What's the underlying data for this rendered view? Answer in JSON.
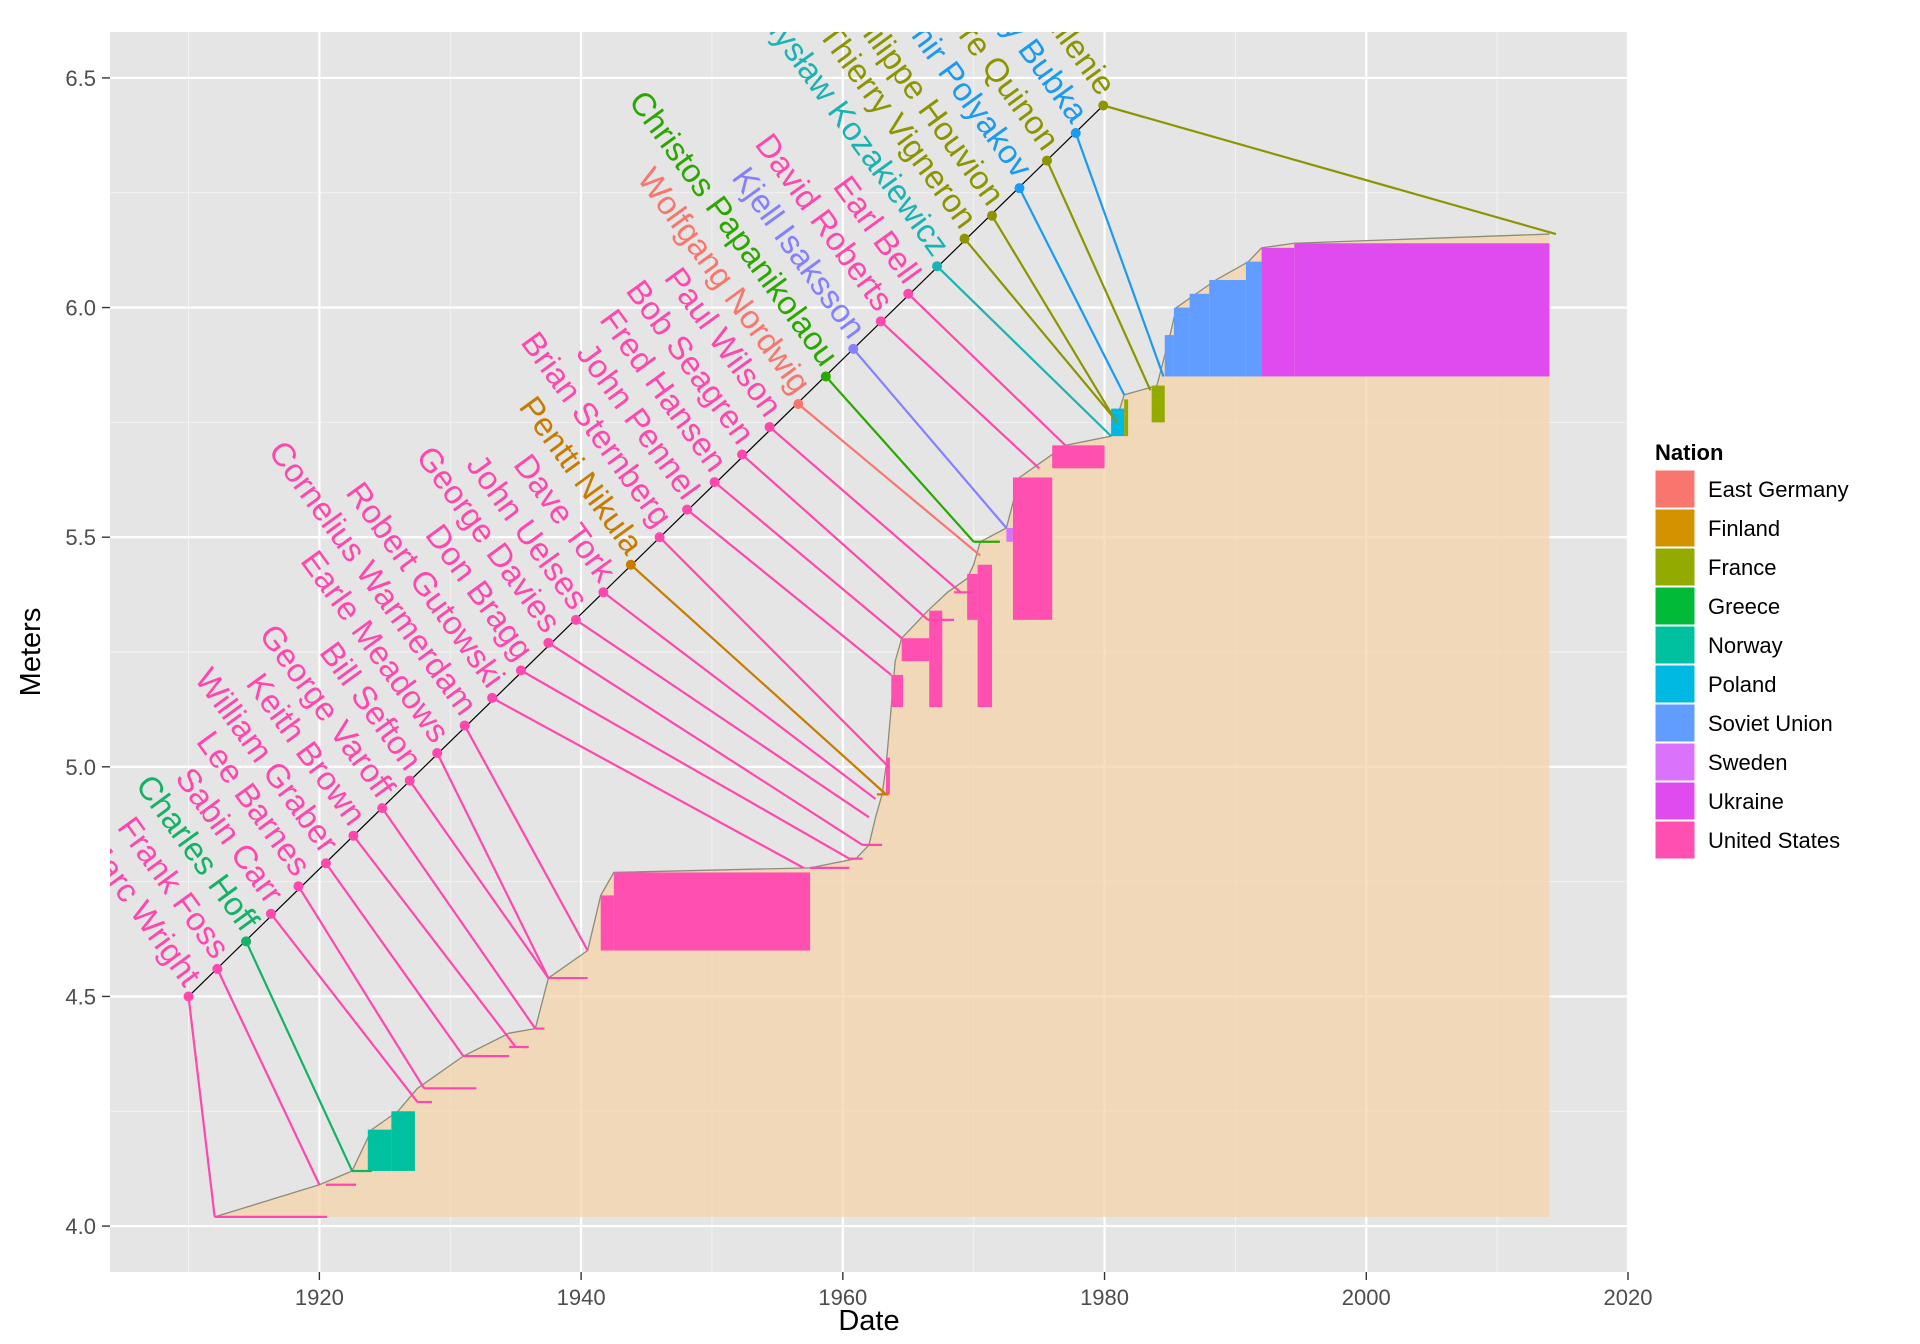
{
  "chart_data": {
    "type": "line",
    "xlabel": "Date",
    "ylabel": "Meters",
    "xlim": [
      1904,
      2020
    ],
    "ylim": [
      3.9,
      6.6
    ],
    "x_ticks": [
      1920,
      1940,
      1960,
      1980,
      2000,
      2020
    ],
    "y_ticks": [
      4.0,
      4.5,
      5.0,
      5.5,
      6.0,
      6.5
    ],
    "x_tick_labels": [
      "1920",
      "1940",
      "1960",
      "1980",
      "2000",
      "2020"
    ],
    "y_tick_labels": [
      "4.0",
      "4.5",
      "5.0",
      "5.5",
      "6.0",
      "6.5"
    ],
    "grid": true,
    "legend": {
      "title": "Nation",
      "position": "right",
      "entries": [
        {
          "name": "East Germany",
          "color": "#F8766D"
        },
        {
          "name": "Finland",
          "color": "#D39200"
        },
        {
          "name": "France",
          "color": "#93AA00"
        },
        {
          "name": "Greece",
          "color": "#00BA38"
        },
        {
          "name": "Norway",
          "color": "#00C19F"
        },
        {
          "name": "Poland",
          "color": "#00B9E3"
        },
        {
          "name": "Soviet Union",
          "color": "#619CFF"
        },
        {
          "name": "Sweden",
          "color": "#DB72FB"
        },
        {
          "name": "Ukraine",
          "color": "#E04BF0"
        },
        {
          "name": "United States",
          "color": "#FF4FB0"
        }
      ]
    },
    "label_colors": {
      "East Germany": "#F8766D",
      "Finland": "#C77C00",
      "France": "#8C9500",
      "Greece": "#2BA800",
      "Norway": "#13B265",
      "Poland": "#1AB3B3",
      "Soviet Union": "#1A9AF0",
      "Sweden": "#8480FF",
      "Ukraine": "#DA47EE",
      "United States": "#FF47AE"
    },
    "record_curve": [
      [
        1912.0,
        4.02
      ],
      [
        1920.0,
        4.09
      ],
      [
        1922.5,
        4.12
      ],
      [
        1924.0,
        4.21
      ],
      [
        1926.0,
        4.25
      ],
      [
        1927.5,
        4.3
      ],
      [
        1931.0,
        4.37
      ],
      [
        1934.5,
        4.42
      ],
      [
        1936.5,
        4.43
      ],
      [
        1937.5,
        4.54
      ],
      [
        1940.5,
        4.6
      ],
      [
        1941.5,
        4.72
      ],
      [
        1942.5,
        4.77
      ],
      [
        1957.5,
        4.78
      ],
      [
        1961.0,
        4.8
      ],
      [
        1962.0,
        4.83
      ],
      [
        1962.5,
        4.89
      ],
      [
        1963.0,
        4.94
      ],
      [
        1963.3,
        5.0
      ],
      [
        1963.7,
        5.13
      ],
      [
        1964.0,
        5.23
      ],
      [
        1964.5,
        5.28
      ],
      [
        1966.5,
        5.34
      ],
      [
        1968.0,
        5.38
      ],
      [
        1969.5,
        5.41
      ],
      [
        1970.0,
        5.44
      ],
      [
        1970.5,
        5.49
      ],
      [
        1972.5,
        5.52
      ],
      [
        1973.5,
        5.63
      ],
      [
        1975.0,
        5.66
      ],
      [
        1977.0,
        5.7
      ],
      [
        1980.5,
        5.72
      ],
      [
        1981.5,
        5.81
      ],
      [
        1984.0,
        5.83
      ],
      [
        1985.0,
        5.94
      ],
      [
        1985.5,
        6.0
      ],
      [
        1987.0,
        6.03
      ],
      [
        1988.5,
        6.06
      ],
      [
        1991.0,
        6.1
      ],
      [
        1992.0,
        6.13
      ],
      [
        1994.5,
        6.14
      ],
      [
        2014.0,
        6.16
      ]
    ],
    "record_fill_end": 2014.0,
    "records": [
      {
        "name": "Marc Wright",
        "nation": "United States",
        "year": 1912.0,
        "mark": 4.02,
        "label_year": 1910.0,
        "label_value": 4.5
      },
      {
        "name": "Frank Foss",
        "nation": "United States",
        "year": 1920.0,
        "mark": 4.09,
        "label_year": 1912.2,
        "label_value": 4.56
      },
      {
        "name": "Charles Hoff",
        "nation": "Norway",
        "year": 1922.5,
        "mark": 4.12,
        "label_year": 1914.4,
        "label_value": 4.62
      },
      {
        "name": "Sabin Carr",
        "nation": "United States",
        "year": 1927.5,
        "mark": 4.27,
        "label_year": 1916.3,
        "label_value": 4.68
      },
      {
        "name": "Lee Barnes",
        "nation": "United States",
        "year": 1928.0,
        "mark": 4.3,
        "label_year": 1918.4,
        "label_value": 4.74
      },
      {
        "name": "William Graber",
        "nation": "United States",
        "year": 1931.0,
        "mark": 4.37,
        "label_year": 1920.5,
        "label_value": 4.79
      },
      {
        "name": "Keith Brown",
        "nation": "United States",
        "year": 1935.0,
        "mark": 4.39,
        "label_year": 1922.6,
        "label_value": 4.85
      },
      {
        "name": "George Varoff",
        "nation": "United States",
        "year": 1936.5,
        "mark": 4.43,
        "label_year": 1924.8,
        "label_value": 4.91
      },
      {
        "name": "Bill Sefton",
        "nation": "United States",
        "year": 1937.5,
        "mark": 4.54,
        "label_year": 1926.9,
        "label_value": 4.97
      },
      {
        "name": "Earle Meadows",
        "nation": "United States",
        "year": 1937.5,
        "mark": 4.54,
        "label_year": 1929.0,
        "label_value": 5.03
      },
      {
        "name": "Cornelius Warmerdam",
        "nation": "United States",
        "year": 1940.5,
        "mark": 4.6,
        "label_year": 1931.1,
        "label_value": 5.09
      },
      {
        "name": "Robert Gutowski",
        "nation": "United States",
        "year": 1957.0,
        "mark": 4.78,
        "label_year": 1933.2,
        "label_value": 5.15
      },
      {
        "name": "Don Bragg",
        "nation": "United States",
        "year": 1960.5,
        "mark": 4.8,
        "label_year": 1935.4,
        "label_value": 5.21
      },
      {
        "name": "George Davies",
        "nation": "United States",
        "year": 1961.5,
        "mark": 4.83,
        "label_year": 1937.5,
        "label_value": 5.27
      },
      {
        "name": "John Uelses",
        "nation": "United States",
        "year": 1962.0,
        "mark": 4.89,
        "label_year": 1939.6,
        "label_value": 5.32
      },
      {
        "name": "Dave Tork",
        "nation": "United States",
        "year": 1962.5,
        "mark": 4.93,
        "label_year": 1941.7,
        "label_value": 5.38
      },
      {
        "name": "Pentti Nikula",
        "nation": "Finland",
        "year": 1963.3,
        "mark": 4.94,
        "label_year": 1943.8,
        "label_value": 5.44
      },
      {
        "name": "Brian Sternberg",
        "nation": "United States",
        "year": 1963.5,
        "mark": 5.0,
        "label_year": 1946.0,
        "label_value": 5.5
      },
      {
        "name": "John Pennel",
        "nation": "United States",
        "year": 1963.7,
        "mark": 5.2,
        "label_year": 1948.1,
        "label_value": 5.56
      },
      {
        "name": "Fred Hansen",
        "nation": "United States",
        "year": 1964.5,
        "mark": 5.28,
        "label_year": 1950.2,
        "label_value": 5.62
      },
      {
        "name": "Bob Seagren",
        "nation": "United States",
        "year": 1966.5,
        "mark": 5.32,
        "label_year": 1952.3,
        "label_value": 5.68
      },
      {
        "name": "Paul Wilson",
        "nation": "United States",
        "year": 1969.0,
        "mark": 5.38,
        "label_year": 1954.4,
        "label_value": 5.74
      },
      {
        "name": "Wolfgang Nordwig",
        "nation": "East Germany",
        "year": 1970.5,
        "mark": 5.46,
        "label_year": 1956.6,
        "label_value": 5.79
      },
      {
        "name": "Christos Papanikolaou",
        "nation": "Greece",
        "year": 1970.0,
        "mark": 5.49,
        "label_year": 1958.7,
        "label_value": 5.85
      },
      {
        "name": "Kjell Isaksson",
        "nation": "Sweden",
        "year": 1972.5,
        "mark": 5.52,
        "label_year": 1960.8,
        "label_value": 5.91
      },
      {
        "name": "David Roberts",
        "nation": "United States",
        "year": 1975.0,
        "mark": 5.65,
        "label_year": 1962.9,
        "label_value": 5.97
      },
      {
        "name": "Earl Bell",
        "nation": "United States",
        "year": 1977.0,
        "mark": 5.7,
        "label_year": 1965.0,
        "label_value": 6.03
      },
      {
        "name": "Władysław Kozakiewicz",
        "nation": "Poland",
        "year": 1980.5,
        "mark": 5.72,
        "label_year": 1967.2,
        "label_value": 6.09
      },
      {
        "name": "Thierry Vigneron",
        "nation": "France",
        "year": 1981.0,
        "mark": 5.75,
        "label_year": 1969.3,
        "label_value": 6.15
      },
      {
        "name": "Philippe Houvion",
        "nation": "France",
        "year": 1980.5,
        "mark": 5.77,
        "label_year": 1971.4,
        "label_value": 6.2
      },
      {
        "name": "Vladimir Polyakov",
        "nation": "Soviet Union",
        "year": 1981.5,
        "mark": 5.81,
        "label_year": 1973.5,
        "label_value": 6.26
      },
      {
        "name": "Pierre Quinon",
        "nation": "France",
        "year": 1983.5,
        "mark": 5.82,
        "label_year": 1975.6,
        "label_value": 6.32
      },
      {
        "name": "Sergey Bubka",
        "nation": "Soviet Union",
        "year": 1984.5,
        "mark": 5.85,
        "label_year": 1977.8,
        "label_value": 6.38
      },
      {
        "name": "Renaud Lavillenie",
        "nation": "France",
        "year": 2014.5,
        "mark": 6.16,
        "label_year": 1979.9,
        "label_value": 6.44
      }
    ],
    "record_bars": [
      {
        "nation": "Norway",
        "x0": 1923.7,
        "x1": 1925.5,
        "y0": 4.12,
        "y1": 4.21
      },
      {
        "nation": "Norway",
        "x0": 1925.5,
        "x1": 1927.3,
        "y0": 4.12,
        "y1": 4.25
      },
      {
        "nation": "United States",
        "x0": 1941.5,
        "x1": 1942.5,
        "y0": 4.6,
        "y1": 4.72
      },
      {
        "nation": "United States",
        "x0": 1942.5,
        "x1": 1957.5,
        "y0": 4.6,
        "y1": 4.77
      },
      {
        "nation": "United States",
        "x0": 1963.3,
        "x1": 1963.6,
        "y0": 4.94,
        "y1": 5.02
      },
      {
        "nation": "United States",
        "x0": 1963.7,
        "x1": 1964.6,
        "y0": 5.13,
        "y1": 5.2
      },
      {
        "nation": "United States",
        "x0": 1964.5,
        "x1": 1966.6,
        "y0": 5.23,
        "y1": 5.28
      },
      {
        "nation": "United States",
        "x0": 1966.6,
        "x1": 1967.6,
        "y0": 5.13,
        "y1": 5.34
      },
      {
        "nation": "United States",
        "x0": 1969.5,
        "x1": 1970.3,
        "y0": 5.32,
        "y1": 5.42
      },
      {
        "nation": "United States",
        "x0": 1970.3,
        "x1": 1971.4,
        "y0": 5.13,
        "y1": 5.44
      },
      {
        "nation": "Sweden",
        "x0": 1972.5,
        "x1": 1973.0,
        "y0": 5.49,
        "y1": 5.52
      },
      {
        "nation": "United States",
        "x0": 1973.0,
        "x1": 1976.0,
        "y0": 5.32,
        "y1": 5.63
      },
      {
        "nation": "United States",
        "x0": 1976.0,
        "x1": 1980.0,
        "y0": 5.65,
        "y1": 5.7
      },
      {
        "nation": "Poland",
        "x0": 1980.5,
        "x1": 1981.5,
        "y0": 5.72,
        "y1": 5.78
      },
      {
        "nation": "France",
        "x0": 1981.5,
        "x1": 1981.8,
        "y0": 5.72,
        "y1": 5.8
      },
      {
        "nation": "France",
        "x0": 1983.6,
        "x1": 1984.6,
        "y0": 5.75,
        "y1": 5.83
      },
      {
        "nation": "Soviet Union",
        "x0": 1984.6,
        "x1": 1985.3,
        "y0": 5.85,
        "y1": 5.94
      },
      {
        "nation": "Soviet Union",
        "x0": 1985.3,
        "x1": 1986.5,
        "y0": 5.85,
        "y1": 6.0
      },
      {
        "nation": "Soviet Union",
        "x0": 1986.5,
        "x1": 1988.0,
        "y0": 5.85,
        "y1": 6.03
      },
      {
        "nation": "Soviet Union",
        "x0": 1988.0,
        "x1": 1990.8,
        "y0": 5.85,
        "y1": 6.06
      },
      {
        "nation": "Soviet Union",
        "x0": 1990.8,
        "x1": 1992.0,
        "y0": 5.85,
        "y1": 6.1
      },
      {
        "nation": "Ukraine",
        "x0": 1992.0,
        "x1": 1994.5,
        "y0": 5.85,
        "y1": 6.13
      },
      {
        "nation": "Ukraine",
        "x0": 1994.5,
        "x1": 2014.0,
        "y0": 5.85,
        "y1": 6.14
      }
    ],
    "mark_ticks": [
      {
        "nation": "United States",
        "x0": 1912.0,
        "x1": 1920.6,
        "y": 4.02
      },
      {
        "nation": "United States",
        "x0": 1920.5,
        "x1": 1922.8,
        "y": 4.09
      },
      {
        "nation": "Norway",
        "x0": 1922.5,
        "x1": 1924.0,
        "y": 4.12
      },
      {
        "nation": "United States",
        "x0": 1927.5,
        "x1": 1928.6,
        "y": 4.27
      },
      {
        "nation": "United States",
        "x0": 1928.0,
        "x1": 1932.0,
        "y": 4.3
      },
      {
        "nation": "United States",
        "x0": 1931.0,
        "x1": 1934.5,
        "y": 4.37
      },
      {
        "nation": "United States",
        "x0": 1934.5,
        "x1": 1936.0,
        "y": 4.39
      },
      {
        "nation": "United States",
        "x0": 1936.5,
        "x1": 1937.2,
        "y": 4.43
      },
      {
        "nation": "United States",
        "x0": 1937.5,
        "x1": 1940.5,
        "y": 4.54
      },
      {
        "nation": "United States",
        "x0": 1957.5,
        "x1": 1960.5,
        "y": 4.78
      },
      {
        "nation": "United States",
        "x0": 1960.5,
        "x1": 1961.5,
        "y": 4.8
      },
      {
        "nation": "United States",
        "x0": 1961.5,
        "x1": 1963.0,
        "y": 4.83
      },
      {
        "nation": "Finland",
        "x0": 1962.6,
        "x1": 1963.5,
        "y": 4.94
      },
      {
        "nation": "United States",
        "x0": 1966.5,
        "x1": 1968.5,
        "y": 5.32
      },
      {
        "nation": "United States",
        "x0": 1968.5,
        "x1": 1970.0,
        "y": 5.38
      },
      {
        "nation": "Greece",
        "x0": 1970.0,
        "x1": 1972.0,
        "y": 5.49
      }
    ]
  }
}
